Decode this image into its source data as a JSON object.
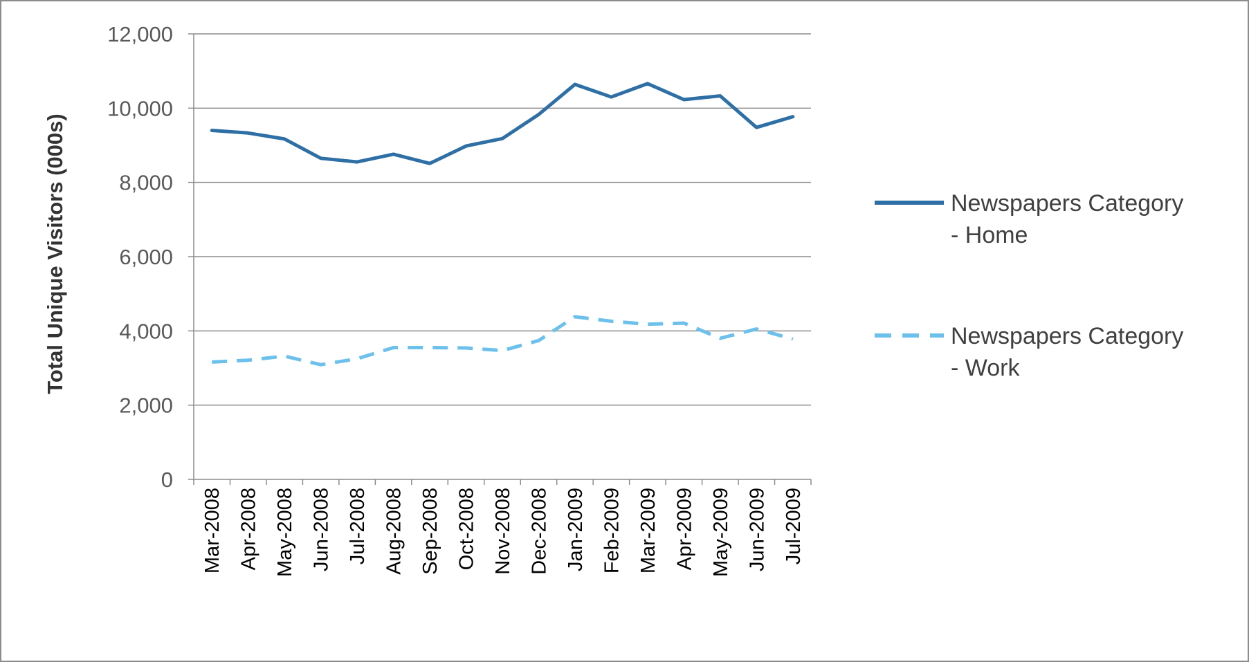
{
  "chart_data": {
    "type": "line",
    "title": "",
    "xlabel": "",
    "ylabel": "Total Unique Visitors (000s)",
    "ylim": [
      0,
      12000
    ],
    "y_ticks": [
      "0",
      "2,000",
      "4,000",
      "6,000",
      "8,000",
      "10,000",
      "12,000"
    ],
    "y_tick_values": [
      0,
      2000,
      4000,
      6000,
      8000,
      10000,
      12000
    ],
    "grid": true,
    "legend_position": "right",
    "categories": [
      "Mar-2008",
      "Apr-2008",
      "May-2008",
      "Jun-2008",
      "Jul-2008",
      "Aug-2008",
      "Sep-2008",
      "Oct-2008",
      "Nov-2008",
      "Dec-2008",
      "Jan-2009",
      "Feb-2009",
      "Mar-2009",
      "Apr-2009",
      "May-2009",
      "Jun-2009",
      "Jul-2009"
    ],
    "series": [
      {
        "name": "Newspapers Category - Home",
        "legend_lines": [
          "Newspapers Category",
          "- Home"
        ],
        "color": "#2e6fa5",
        "style": "solid",
        "values": [
          9400,
          9330,
          9170,
          8650,
          8550,
          8760,
          8510,
          8980,
          9180,
          9830,
          10640,
          10300,
          10660,
          10230,
          10330,
          9480,
          9770
        ]
      },
      {
        "name": "Newspapers Category - Work",
        "legend_lines": [
          "Newspapers Category",
          "- Work"
        ],
        "color": "#6cc1ec",
        "style": "dashed",
        "values": [
          3160,
          3210,
          3320,
          3090,
          3250,
          3550,
          3550,
          3540,
          3470,
          3740,
          4380,
          4260,
          4180,
          4210,
          3800,
          4050,
          3780
        ]
      }
    ]
  }
}
